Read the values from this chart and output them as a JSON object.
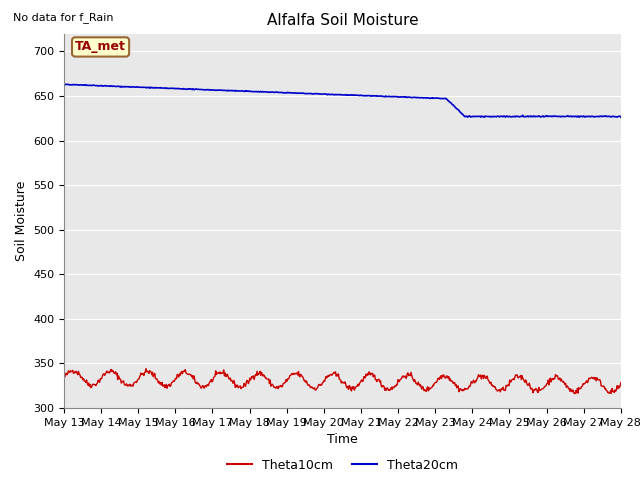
{
  "title": "Alfalfa Soil Moisture",
  "xlabel": "Time",
  "ylabel": "Soil Moisture",
  "top_left_text": "No data for f_Rain",
  "annotation_label": "TA_met",
  "annotation_box_color": "#FFFFCC",
  "annotation_border_color": "#996633",
  "ylim": [
    300,
    720
  ],
  "yticks": [
    300,
    350,
    400,
    450,
    500,
    550,
    600,
    650,
    700
  ],
  "bg_color": "#E8E8E8",
  "line1_color": "#CC0000",
  "line2_color": "#0000CC",
  "legend_labels": [
    "Theta10cm",
    "Theta20cm"
  ],
  "x_tick_days": [
    13,
    14,
    15,
    16,
    17,
    18,
    19,
    20,
    21,
    22,
    23,
    24,
    25,
    26,
    27,
    28
  ],
  "title_fontsize": 11,
  "axis_fontsize": 9,
  "tick_fontsize": 8,
  "legend_fontsize": 9
}
